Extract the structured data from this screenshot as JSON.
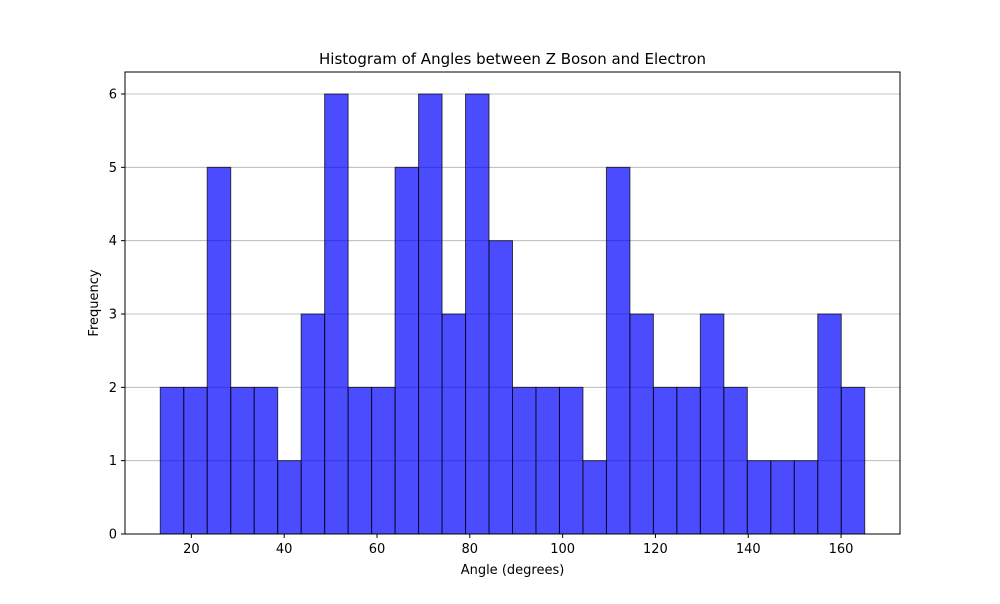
{
  "chart_data": {
    "type": "bar",
    "title": "Histogram of Angles between Z Boson and Electron",
    "xlabel": "Angle (degrees)",
    "ylabel": "Frequency",
    "bin_edges": [
      13.3,
      18.36,
      23.42,
      28.48,
      33.54,
      38.6,
      43.66,
      48.72,
      53.78,
      58.84,
      63.9,
      68.96,
      74.02,
      79.08,
      84.14,
      89.2,
      94.26,
      99.32,
      104.38,
      109.44,
      114.5,
      119.56,
      124.62,
      129.68,
      134.74,
      139.8,
      144.86,
      149.92,
      154.98,
      160.04,
      165.1
    ],
    "values": [
      2,
      2,
      5,
      2,
      2,
      1,
      3,
      6,
      2,
      2,
      5,
      6,
      3,
      6,
      4,
      2,
      2,
      2,
      1,
      5,
      3,
      2,
      2,
      3,
      2,
      1,
      1,
      1,
      3,
      2
    ],
    "xlim": [
      5.7,
      172.7
    ],
    "ylim": [
      0,
      6.3
    ],
    "xticks": [
      "20",
      "40",
      "60",
      "80",
      "100",
      "120",
      "140",
      "160"
    ],
    "yticks": [
      "0",
      "1",
      "2",
      "3",
      "4",
      "5",
      "6"
    ],
    "grid": "y",
    "bar_color": "#0000ff",
    "bar_opacity": 0.7,
    "edge_color": "#000000"
  }
}
